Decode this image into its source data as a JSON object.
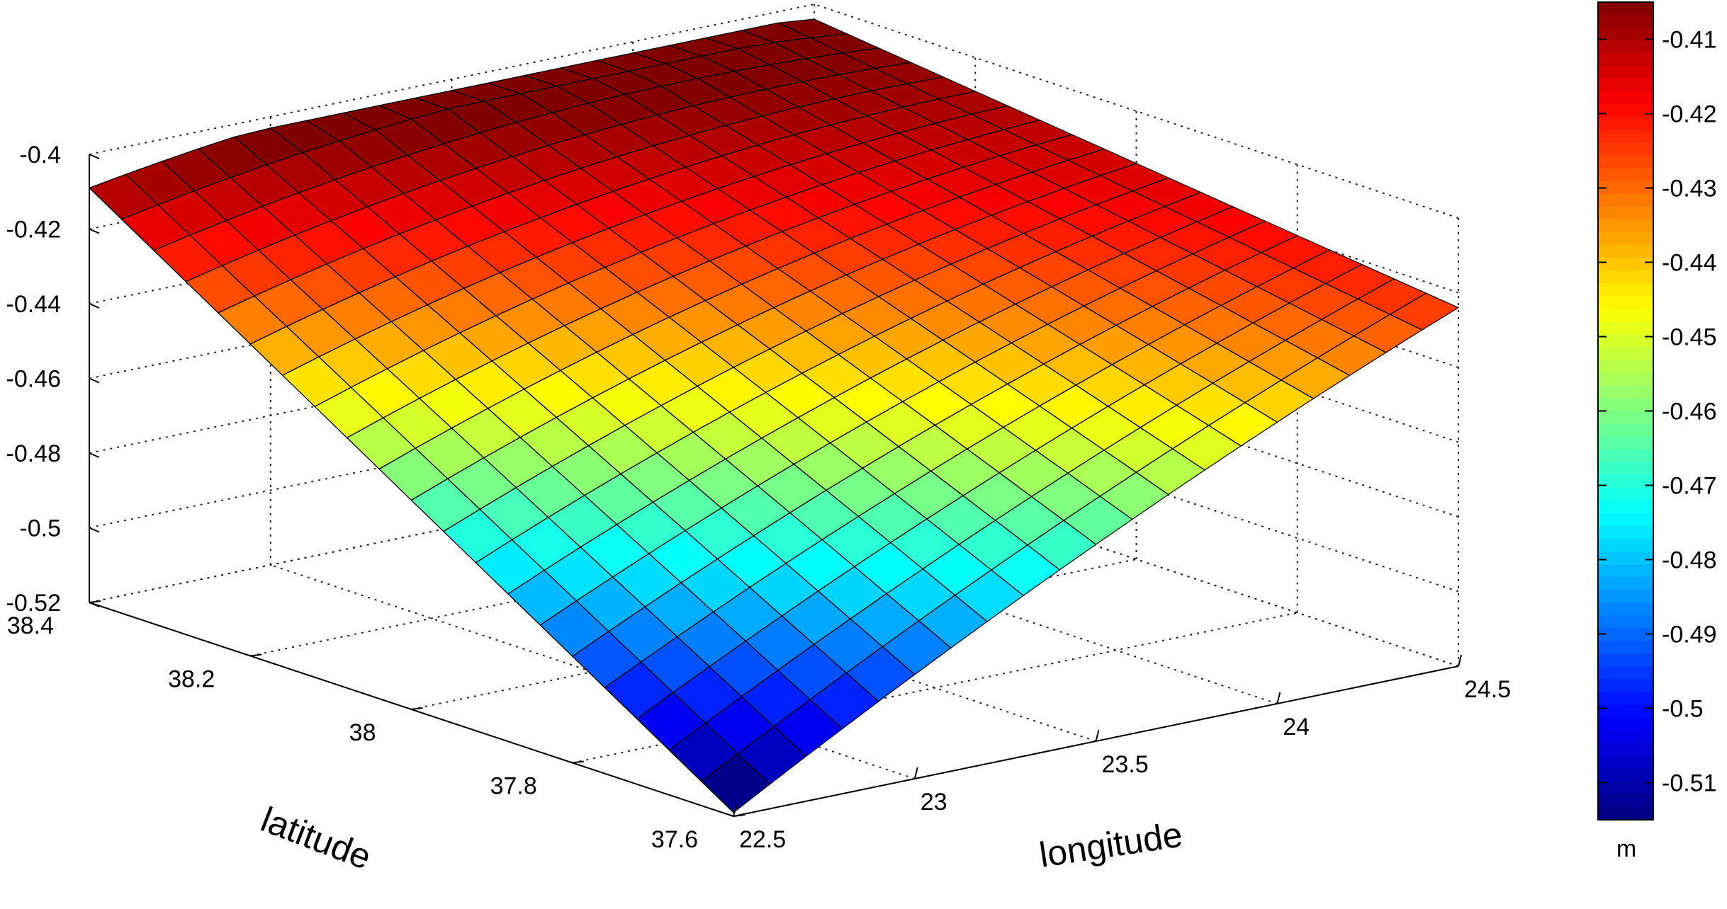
{
  "chart_data": {
    "type": "surface",
    "title": "",
    "xlabel": "longitude",
    "ylabel": "latitude",
    "zlabel": "",
    "xlim": [
      22.5,
      24.5
    ],
    "ylim": [
      37.6,
      38.4
    ],
    "zlim": [
      -0.52,
      -0.4
    ],
    "x_ticks": [
      22.5,
      23,
      23.5,
      24,
      24.5
    ],
    "x_tick_labels": [
      "22.5",
      "23",
      "23.5",
      "24",
      "24.5"
    ],
    "y_ticks": [
      37.6,
      37.8,
      38,
      38.2,
      38.4
    ],
    "y_tick_labels": [
      "37.6",
      "37.8",
      "38",
      "38.2",
      "38.4"
    ],
    "z_ticks": [
      -0.52,
      -0.5,
      -0.48,
      -0.46,
      -0.44,
      -0.42,
      -0.4
    ],
    "z_tick_labels": [
      "-0.52",
      "-0.5",
      "-0.48",
      "-0.46",
      "-0.44",
      "-0.42",
      "-0.4"
    ],
    "grid": true,
    "colormap": "jet",
    "surface": {
      "x_range": [
        22.5,
        24.5
      ],
      "y_range": [
        37.6,
        38.4
      ],
      "grid_size": [
        21,
        21
      ],
      "corner_values": {
        "lon22.5_lat37.6": -0.519,
        "lon22.5_lat38.4": -0.409,
        "lon24.5_lat37.6": -0.424,
        "lon24.5_lat38.4": -0.404
      },
      "max_value": -0.403,
      "min_value": -0.519
    },
    "colorbar": {
      "label": "m",
      "range": [
        -0.515,
        -0.405
      ],
      "ticks": [
        -0.41,
        -0.42,
        -0.43,
        -0.44,
        -0.45,
        -0.46,
        -0.47,
        -0.48,
        -0.49,
        -0.5,
        -0.51
      ],
      "tick_labels": [
        "-0.41",
        "-0.42",
        "-0.43",
        "-0.44",
        "-0.45",
        "-0.46",
        "-0.47",
        "-0.48",
        "-0.49",
        "-0.5",
        "-0.51"
      ]
    }
  }
}
